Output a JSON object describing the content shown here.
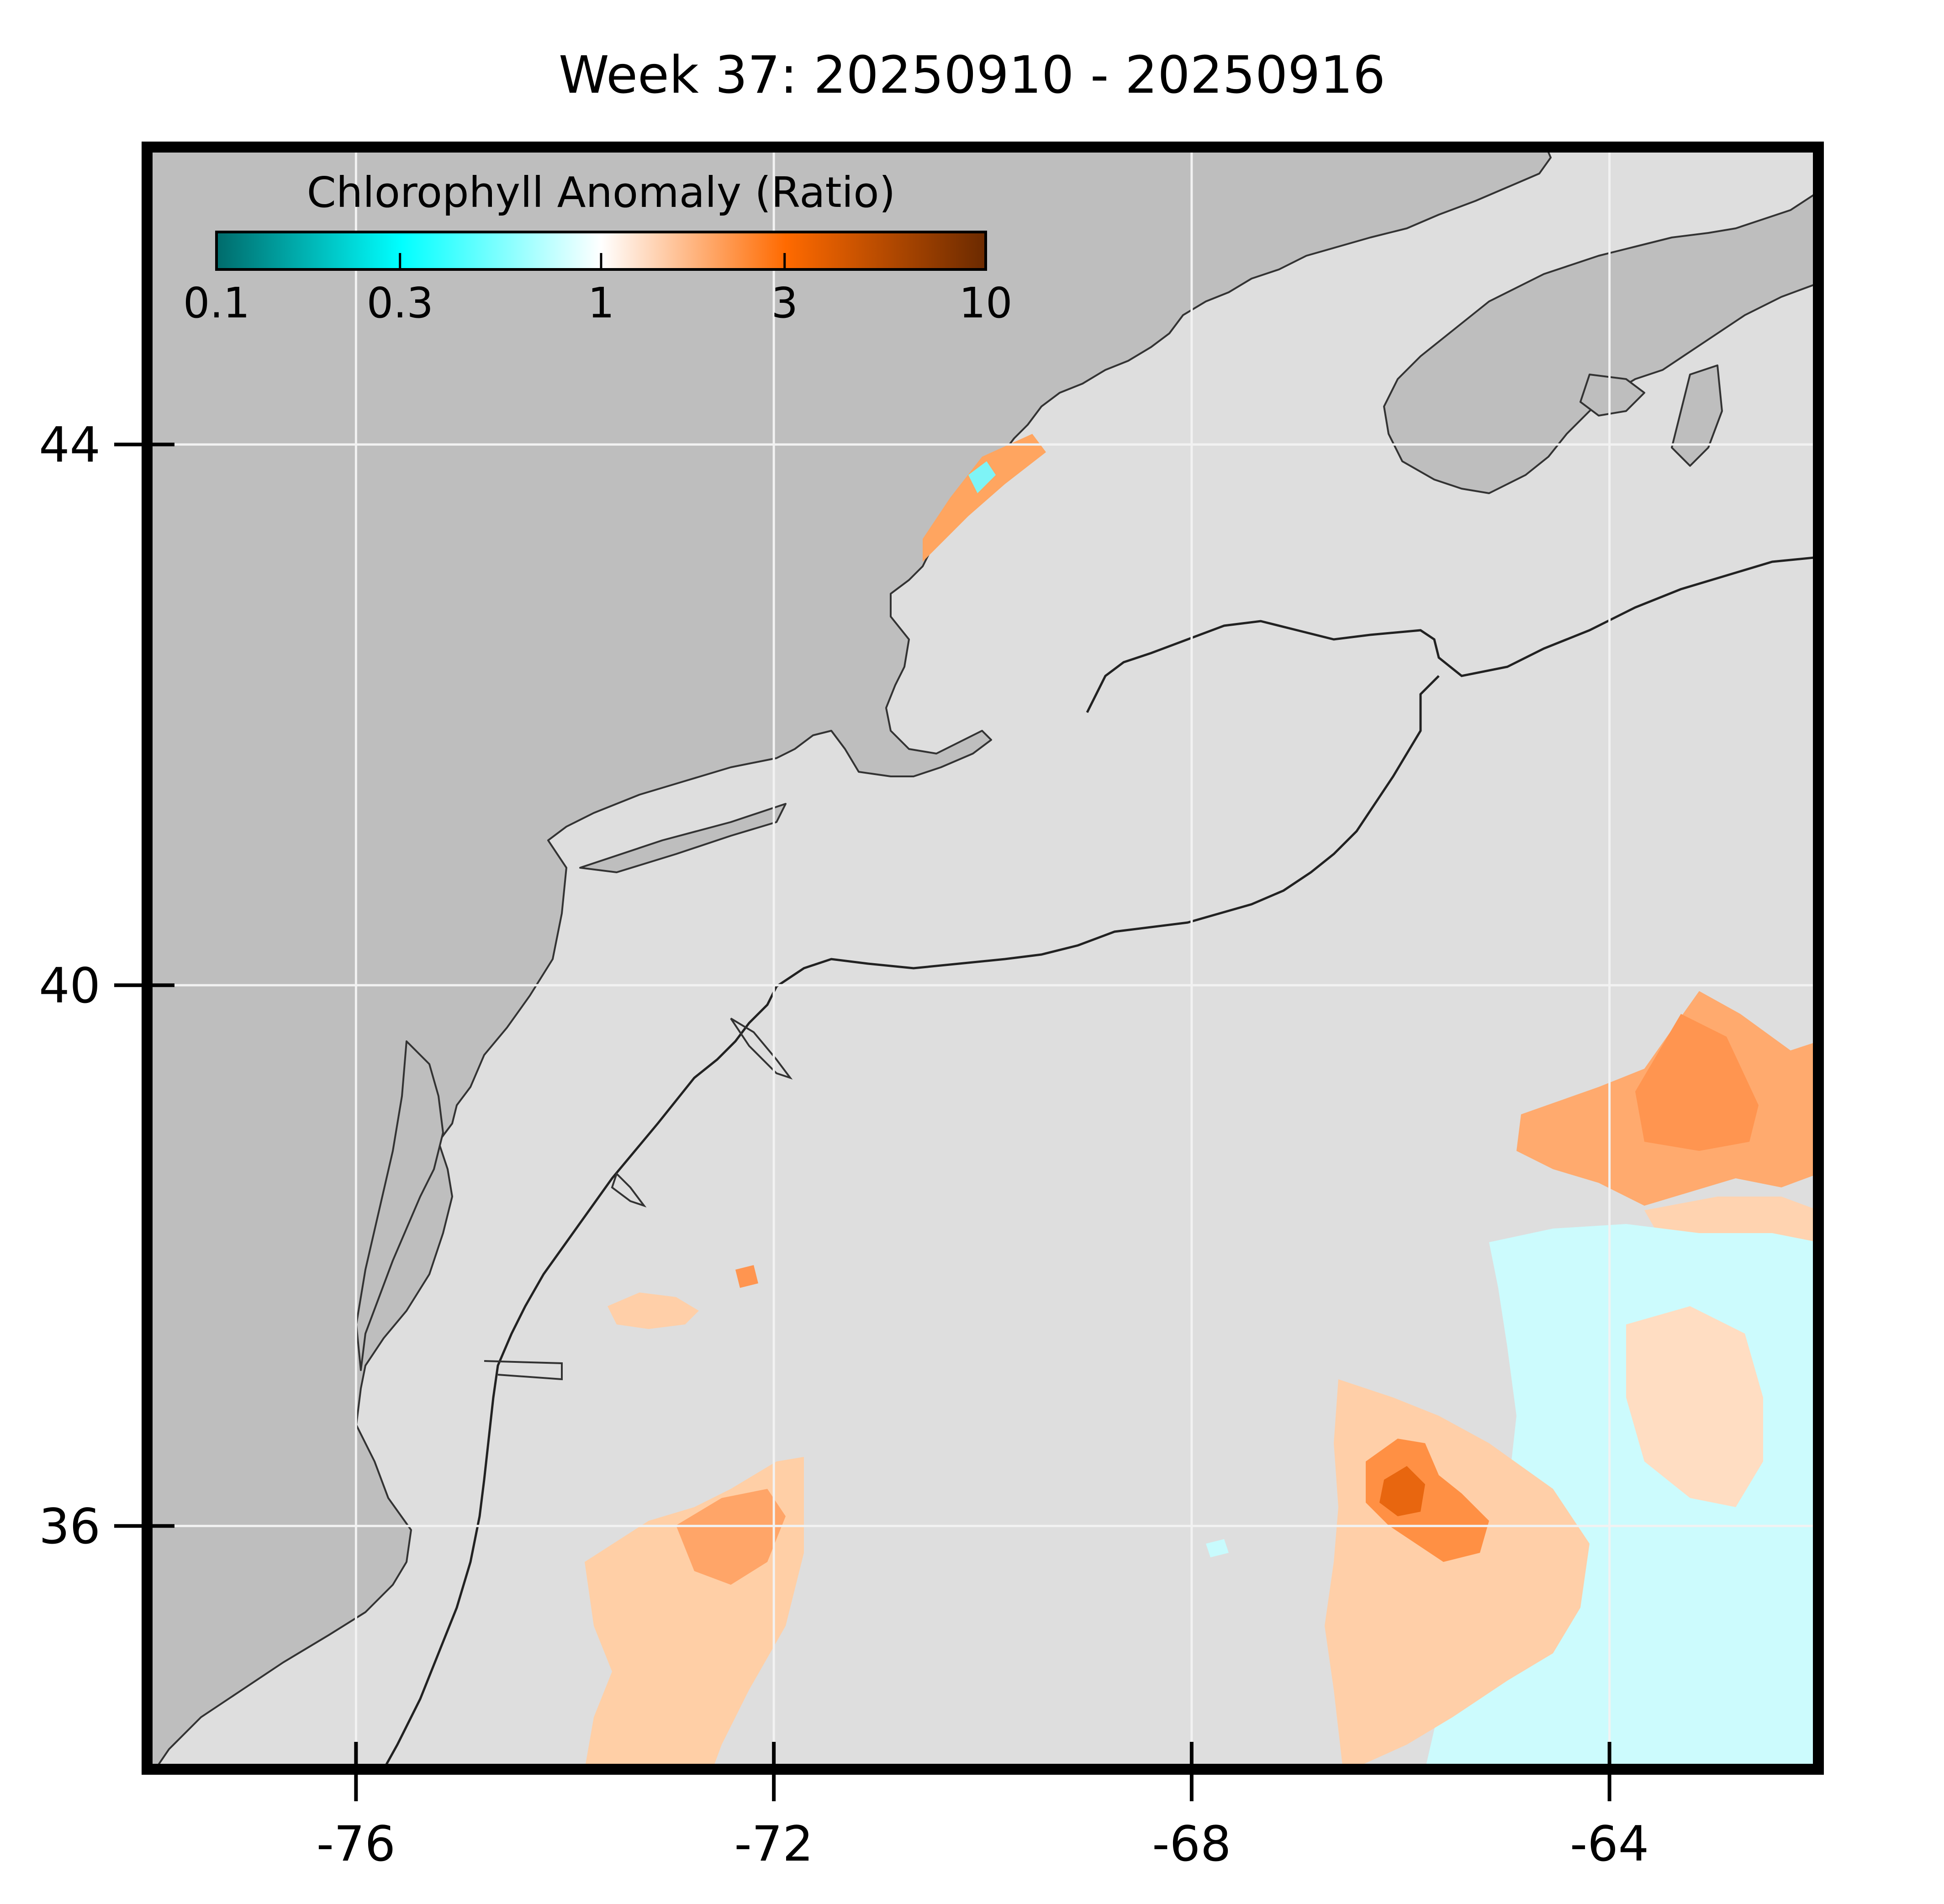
{
  "title": "Week 37: 20250910 - 20250916",
  "colorbar": {
    "label": "Chlorophyll Anomaly (Ratio)",
    "ticks": [
      "0.1",
      "0.3",
      "1",
      "3",
      "10"
    ],
    "tick_values": [
      0.1,
      0.3,
      1,
      3,
      10
    ],
    "scale": "log",
    "colors": [
      "#006b6b",
      "#00ffff",
      "#ffffff",
      "#ff6a00",
      "#6b2a00"
    ]
  },
  "axes": {
    "x_ticks": [
      "-76",
      "-72",
      "-68",
      "-64"
    ],
    "x_values": [
      -76,
      -72,
      -68,
      -64
    ],
    "y_ticks": [
      "44",
      "40",
      "36"
    ],
    "y_values": [
      44,
      40,
      36
    ],
    "lon_range": [
      -78,
      -62
    ],
    "lat_range": [
      34.2,
      46.2
    ]
  },
  "colors": {
    "land": "#bebebe",
    "ocean_nodata": "#dedede",
    "frame": "#000000",
    "grid": "#f2f2f2"
  }
}
